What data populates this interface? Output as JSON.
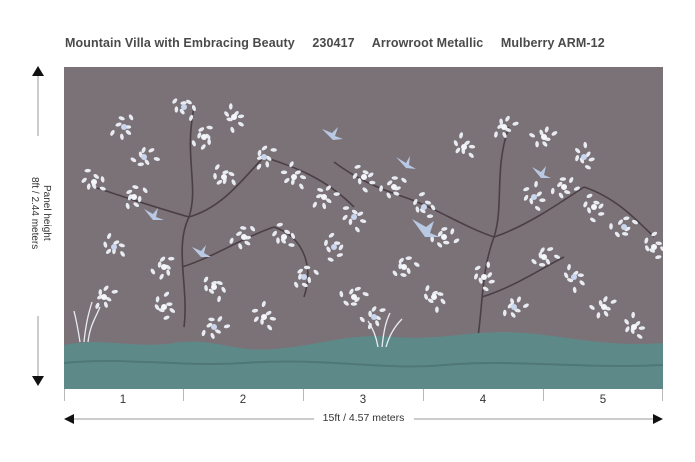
{
  "header": {
    "pattern_name": "Mountain Villa with Embracing Beauty",
    "code": "230417",
    "material": "Arrowroot Metallic",
    "colorway": "Mulberry ARM-12"
  },
  "dimensions": {
    "height_label": "Panel height",
    "height_value": "8ft / 2.44 meters",
    "width_value": "15ft  / 4.57 meters"
  },
  "panels": [
    "1",
    "2",
    "3",
    "4",
    "5"
  ],
  "colors": {
    "background": "#7b7278",
    "ground": "#5d8a89",
    "blossom": "#e8ecf2",
    "branch": "#4a3f44",
    "bird": "#b9c8e3"
  }
}
